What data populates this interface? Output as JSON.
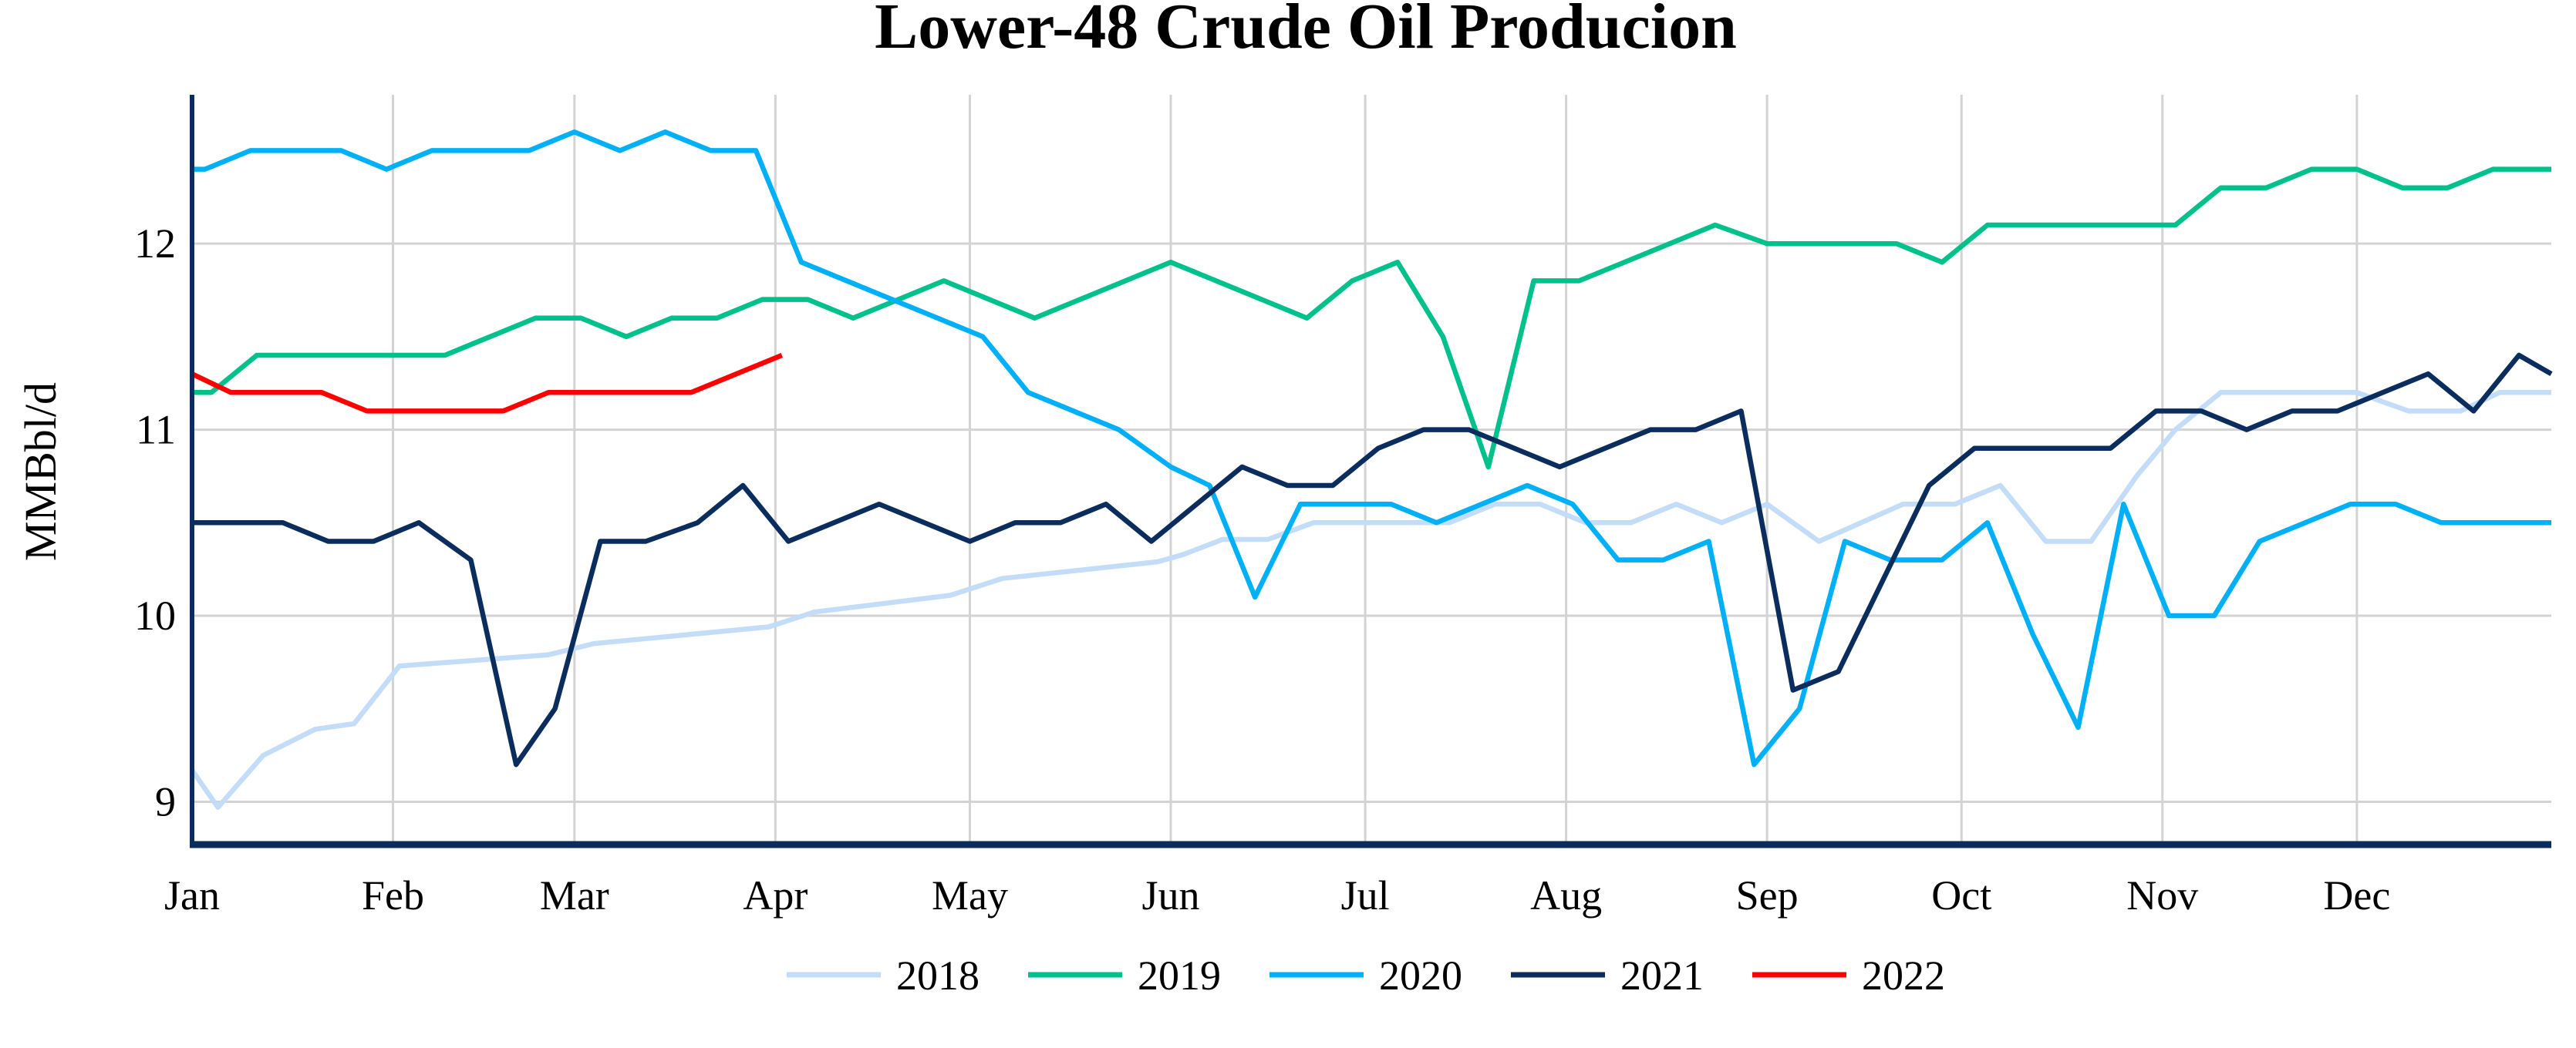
{
  "chart_data": {
    "type": "line",
    "title": "Lower-48 Crude Oil Producion",
    "xlabel": "",
    "ylabel": "MMBbl/d",
    "x_ticks": [
      "Jan",
      "Feb",
      "Mar",
      "Apr",
      "May",
      "Jun",
      "Jul",
      "Aug",
      "Sep",
      "Oct",
      "Nov",
      "Dec"
    ],
    "y_ticks": [
      9,
      10,
      11,
      12
    ],
    "ylim": [
      8.77,
      12.8
    ],
    "xlim": [
      "01-01",
      "12-31"
    ],
    "grid": true,
    "legend_position": "bottom",
    "series": [
      {
        "name": "2018",
        "color": "#c3dcf7",
        "points": [
          [
            "01-01",
            9.17
          ],
          [
            "01-05",
            8.97
          ],
          [
            "01-12",
            9.25
          ],
          [
            "01-20",
            9.39
          ],
          [
            "01-26",
            9.42
          ],
          [
            "02-02",
            9.73
          ],
          [
            "02-25",
            9.79
          ],
          [
            "03-04",
            9.85
          ],
          [
            "03-31",
            9.94
          ],
          [
            "04-07",
            10.02
          ],
          [
            "04-28",
            10.11
          ],
          [
            "05-06",
            10.2
          ],
          [
            "05-30",
            10.29
          ],
          [
            "06-03",
            10.33
          ],
          [
            "06-09",
            10.41
          ],
          [
            "06-16",
            10.41
          ],
          [
            "06-23",
            10.5
          ],
          [
            "07-14",
            10.5
          ],
          [
            "07-21",
            10.6
          ],
          [
            "07-28",
            10.6
          ],
          [
            "08-04",
            10.5
          ],
          [
            "08-11",
            10.5
          ],
          [
            "08-18",
            10.6
          ],
          [
            "08-25",
            10.5
          ],
          [
            "09-01",
            10.6
          ],
          [
            "09-09",
            10.4
          ],
          [
            "09-22",
            10.6
          ],
          [
            "09-30",
            10.6
          ],
          [
            "10-07",
            10.7
          ],
          [
            "10-14",
            10.4
          ],
          [
            "10-21",
            10.4
          ],
          [
            "10-28",
            10.75
          ],
          [
            "11-03",
            11.0
          ],
          [
            "11-10",
            11.2
          ],
          [
            "12-01",
            11.2
          ],
          [
            "12-09",
            11.1
          ],
          [
            "12-17",
            11.1
          ],
          [
            "12-23",
            11.2
          ],
          [
            "12-31",
            11.2
          ]
        ]
      },
      {
        "name": "2019",
        "color": "#00c08b",
        "points": [
          [
            "01-01",
            11.2
          ],
          [
            "01-04",
            11.2
          ],
          [
            "01-11",
            11.4
          ],
          [
            "02-09",
            11.4
          ],
          [
            "02-23",
            11.6
          ],
          [
            "03-02",
            11.6
          ],
          [
            "03-09",
            11.5
          ],
          [
            "03-16",
            11.6
          ],
          [
            "03-23",
            11.6
          ],
          [
            "03-30",
            11.7
          ],
          [
            "04-06",
            11.7
          ],
          [
            "04-13",
            11.6
          ],
          [
            "04-27",
            11.8
          ],
          [
            "05-11",
            11.6
          ],
          [
            "06-01",
            11.9
          ],
          [
            "06-22",
            11.6
          ],
          [
            "06-29",
            11.8
          ],
          [
            "07-06",
            11.9
          ],
          [
            "07-13",
            11.5
          ],
          [
            "07-20",
            10.8
          ],
          [
            "07-27",
            11.8
          ],
          [
            "08-03",
            11.8
          ],
          [
            "08-24",
            12.1
          ],
          [
            "09-01",
            12.0
          ],
          [
            "09-21",
            12.0
          ],
          [
            "09-28",
            11.9
          ],
          [
            "10-05",
            12.1
          ],
          [
            "11-03",
            12.1
          ],
          [
            "11-10",
            12.3
          ],
          [
            "11-17",
            12.3
          ],
          [
            "11-24",
            12.4
          ],
          [
            "12-01",
            12.4
          ],
          [
            "12-08",
            12.3
          ],
          [
            "12-15",
            12.3
          ],
          [
            "12-22",
            12.4
          ],
          [
            "12-31",
            12.4
          ]
        ]
      },
      {
        "name": "2020",
        "color": "#00b0f6",
        "points": [
          [
            "01-01",
            12.4
          ],
          [
            "01-03",
            12.4
          ],
          [
            "01-10",
            12.5
          ],
          [
            "01-24",
            12.5
          ],
          [
            "01-31",
            12.4
          ],
          [
            "02-07",
            12.5
          ],
          [
            "02-22",
            12.5
          ],
          [
            "03-01",
            12.6
          ],
          [
            "03-08",
            12.5
          ],
          [
            "03-15",
            12.6
          ],
          [
            "03-22",
            12.5
          ],
          [
            "03-29",
            12.5
          ],
          [
            "04-05",
            11.9
          ],
          [
            "05-03",
            11.5
          ],
          [
            "05-10",
            11.2
          ],
          [
            "05-24",
            11.0
          ],
          [
            "06-01",
            10.8
          ],
          [
            "06-07",
            10.7
          ],
          [
            "06-14",
            10.1
          ],
          [
            "06-21",
            10.6
          ],
          [
            "07-05",
            10.6
          ],
          [
            "07-12",
            10.5
          ],
          [
            "07-26",
            10.7
          ],
          [
            "08-02",
            10.6
          ],
          [
            "08-09",
            10.3
          ],
          [
            "08-16",
            10.3
          ],
          [
            "08-23",
            10.4
          ],
          [
            "08-30",
            9.2
          ],
          [
            "09-06",
            9.5
          ],
          [
            "09-13",
            10.4
          ],
          [
            "09-20",
            10.3
          ],
          [
            "09-28",
            10.3
          ],
          [
            "10-05",
            10.5
          ],
          [
            "10-12",
            9.9
          ],
          [
            "10-19",
            9.4
          ],
          [
            "10-26",
            10.6
          ],
          [
            "11-02",
            10.0
          ],
          [
            "11-09",
            10.0
          ],
          [
            "11-16",
            10.4
          ],
          [
            "11-30",
            10.6
          ],
          [
            "12-07",
            10.6
          ],
          [
            "12-14",
            10.5
          ],
          [
            "12-31",
            10.5
          ]
        ]
      },
      {
        "name": "2021",
        "color": "#0b2d5e",
        "points": [
          [
            "01-01",
            10.5
          ],
          [
            "01-15",
            10.5
          ],
          [
            "01-22",
            10.4
          ],
          [
            "01-29",
            10.4
          ],
          [
            "02-05",
            10.5
          ],
          [
            "02-13",
            10.3
          ],
          [
            "02-20",
            9.2
          ],
          [
            "02-26",
            9.5
          ],
          [
            "03-05",
            10.4
          ],
          [
            "03-12",
            10.4
          ],
          [
            "03-20",
            10.5
          ],
          [
            "03-27",
            10.7
          ],
          [
            "04-03",
            10.4
          ],
          [
            "04-17",
            10.6
          ],
          [
            "05-01",
            10.4
          ],
          [
            "05-08",
            10.5
          ],
          [
            "05-15",
            10.5
          ],
          [
            "05-22",
            10.6
          ],
          [
            "05-29",
            10.4
          ],
          [
            "06-12",
            10.8
          ],
          [
            "06-19",
            10.7
          ],
          [
            "06-26",
            10.7
          ],
          [
            "07-03",
            10.9
          ],
          [
            "07-10",
            11.0
          ],
          [
            "07-17",
            11.0
          ],
          [
            "07-31",
            10.8
          ],
          [
            "08-14",
            11.0
          ],
          [
            "08-21",
            11.0
          ],
          [
            "08-28",
            11.1
          ],
          [
            "09-05",
            9.6
          ],
          [
            "09-12",
            9.7
          ],
          [
            "09-26",
            10.7
          ],
          [
            "10-03",
            10.9
          ],
          [
            "10-24",
            10.9
          ],
          [
            "10-31",
            11.1
          ],
          [
            "11-07",
            11.1
          ],
          [
            "11-14",
            11.0
          ],
          [
            "11-21",
            11.1
          ],
          [
            "11-28",
            11.1
          ],
          [
            "12-12",
            11.3
          ],
          [
            "12-19",
            11.1
          ],
          [
            "12-26",
            11.4
          ],
          [
            "12-31",
            11.3
          ]
        ]
      },
      {
        "name": "2022",
        "color": "#ff0000",
        "points": [
          [
            "01-01",
            11.3
          ],
          [
            "01-07",
            11.2
          ],
          [
            "01-21",
            11.2
          ],
          [
            "01-28",
            11.1
          ],
          [
            "02-18",
            11.1
          ],
          [
            "02-25",
            11.2
          ],
          [
            "03-19",
            11.2
          ],
          [
            "04-02",
            11.4
          ]
        ]
      }
    ]
  }
}
